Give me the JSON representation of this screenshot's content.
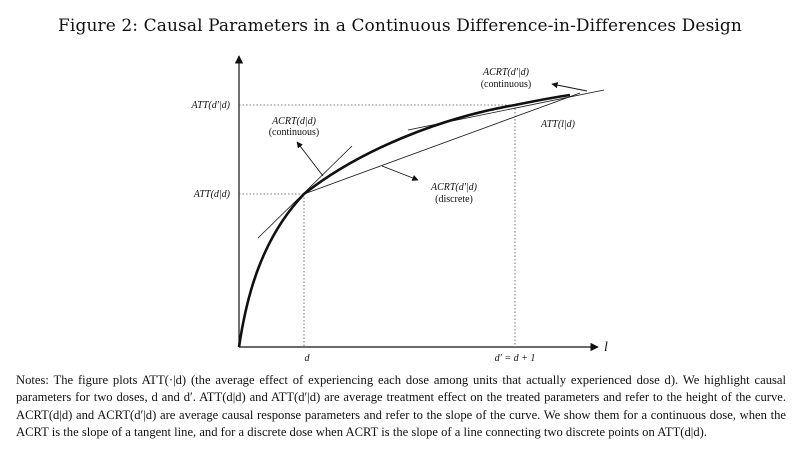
{
  "title": "Figure 2: Causal Parameters in a Continuous Difference-in-Differences Design",
  "labels": {
    "y_upper": "ATT(d′|d)",
    "y_lower": "ATT(d|d)",
    "x_d": "d",
    "x_dprime": "d′ = d + 1",
    "x_axis": "l",
    "curve": "ATT(l|d)",
    "acrt_cont_low_1": "ACRT(d|d)",
    "acrt_cont_low_2": "(continuous)",
    "acrt_discrete_1": "ACRT(d′|d)",
    "acrt_discrete_2": "(discrete)",
    "acrt_cont_high_1": "ACRT(d′|d)",
    "acrt_cont_high_2": "(continuous)"
  },
  "notes": "Notes: The figure plots ATT(·|d) (the average effect of experiencing each dose among units that actually experienced dose d). We highlight causal parameters for two doses, d and d′. ATT(d|d) and ATT(d′|d) are average treatment effect on the treated parameters and refer to the height of the curve. ACRT(d|d) and ACRT(d′|d) are average causal response parameters and refer to the slope of the curve. We show them for a continuous dose, when the ACRT is the slope of a tangent line, and for a discrete dose when ACRT is the slope of a line connecting two discrete points on ATT(d|d)."
}
